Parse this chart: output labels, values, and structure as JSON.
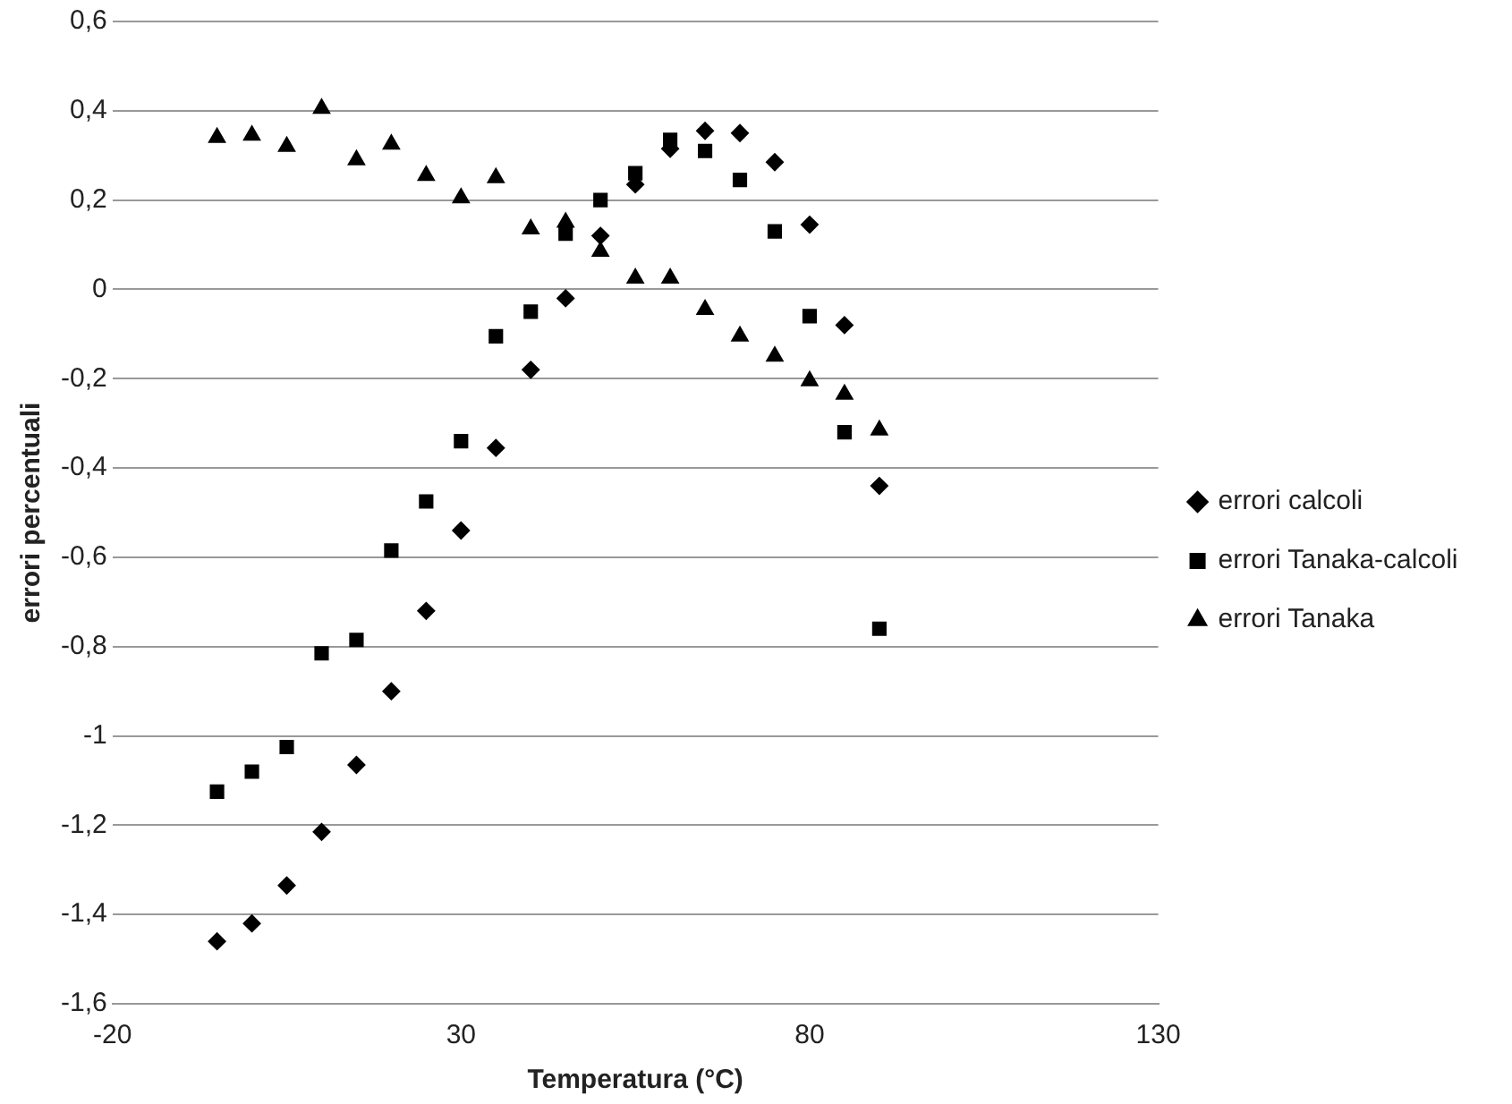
{
  "chart_data": {
    "type": "scatter",
    "xlabel": "Temperatura (°C)",
    "ylabel": "errori percentuali",
    "x": [
      -5,
      0,
      5,
      10,
      15,
      20,
      25,
      30,
      35,
      40,
      45,
      50,
      55,
      60,
      65,
      70,
      75,
      80,
      85,
      90
    ],
    "series": [
      {
        "name": "errori calcoli",
        "color": "#000000",
        "marker": "diamond",
        "values": [
          -1.46,
          -1.42,
          -1.335,
          -1.215,
          -1.065,
          -0.9,
          -0.72,
          -0.54,
          -0.355,
          -0.18,
          -0.02,
          0.12,
          0.235,
          0.315,
          0.355,
          0.35,
          0.285,
          0.145,
          -0.08,
          -0.44
        ]
      },
      {
        "name": "errori Tanaka-calcoli",
        "color": "#000000",
        "marker": "square",
        "values": [
          -1.125,
          -1.08,
          -1.025,
          -0.815,
          -0.785,
          -0.585,
          -0.475,
          -0.34,
          -0.105,
          -0.05,
          0.125,
          0.2,
          0.26,
          0.335,
          0.31,
          0.245,
          0.13,
          -0.06,
          -0.32,
          -0.76
        ]
      },
      {
        "name": "errori Tanaka",
        "color": "#000000",
        "marker": "triangle",
        "values": [
          0.34,
          0.345,
          0.32,
          0.405,
          0.29,
          0.325,
          0.255,
          0.205,
          0.25,
          0.135,
          0.15,
          0.085,
          0.025,
          0.025,
          -0.045,
          -0.105,
          -0.15,
          -0.205,
          -0.235,
          -0.315
        ]
      }
    ],
    "xlim": [
      -20,
      130
    ],
    "xticks": [
      -20,
      30,
      80,
      130
    ],
    "ylim": [
      -1.6,
      0.6
    ],
    "yticks": [
      {
        "value": -1.6,
        "label": "-1,6"
      },
      {
        "value": -1.4,
        "label": "-1,4"
      },
      {
        "value": -1.2,
        "label": "-1,2"
      },
      {
        "value": -1,
        "label": "-1"
      },
      {
        "value": -0.8,
        "label": "-0,8"
      },
      {
        "value": -0.6,
        "label": "-0,6"
      },
      {
        "value": -0.4,
        "label": "-0,4"
      },
      {
        "value": -0.2,
        "label": "-0,2"
      },
      {
        "value": 0,
        "label": "0"
      },
      {
        "value": 0.2,
        "label": "0,2"
      },
      {
        "value": 0.4,
        "label": "0,4"
      },
      {
        "value": 0.6,
        "label": "0,6"
      }
    ],
    "grid": "y",
    "legend": "right"
  }
}
